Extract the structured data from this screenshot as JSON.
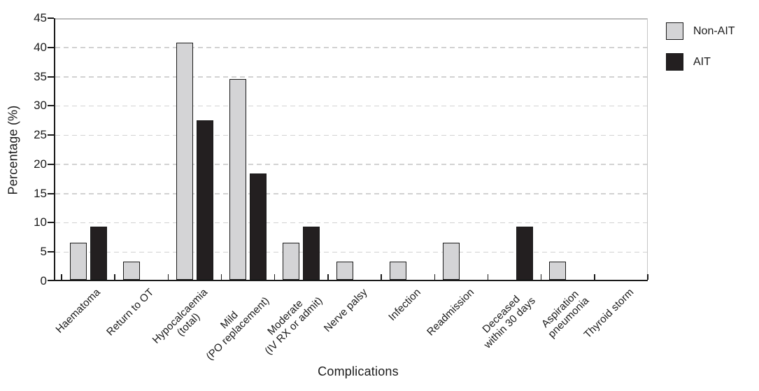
{
  "chart_data": {
    "type": "bar",
    "title": "",
    "xlabel": "Complications",
    "ylabel": "Percentage (%)",
    "ylim": [
      0,
      45
    ],
    "yticks": [
      0,
      5,
      10,
      15,
      20,
      25,
      30,
      35,
      40,
      45
    ],
    "grid": "dashed-horizontal",
    "legend_position": "top-right-outside",
    "categories": [
      "Haematoma",
      "Return to OT",
      "Hypocalcaemia\n(total)",
      "Mild\n(PO replacement)",
      "Moderate\n(IV RX or admit)",
      "Nerve palsy",
      "Infection",
      "Readmission",
      "Deceased\nwithin 30 days",
      "Aspiration\npneumonia",
      "Thyroid storm"
    ],
    "series": [
      {
        "name": "Non-AIT",
        "color": "#d4d4d6",
        "values": [
          6.3,
          3.1,
          40.6,
          34.4,
          6.3,
          3.1,
          3.1,
          6.3,
          0,
          3.1,
          0
        ]
      },
      {
        "name": "AIT",
        "color": "#231f20",
        "values": [
          9.1,
          0,
          27.3,
          18.2,
          9.1,
          0,
          0,
          0,
          9.1,
          0,
          0
        ]
      }
    ]
  },
  "colors": {
    "background": "#ffffff",
    "text": "#1a1a1a",
    "axis": "#1a1a1a",
    "bar_border": "#1a1a1a",
    "gridline": "#d2d2d2",
    "frame": "#c0c0c0"
  }
}
